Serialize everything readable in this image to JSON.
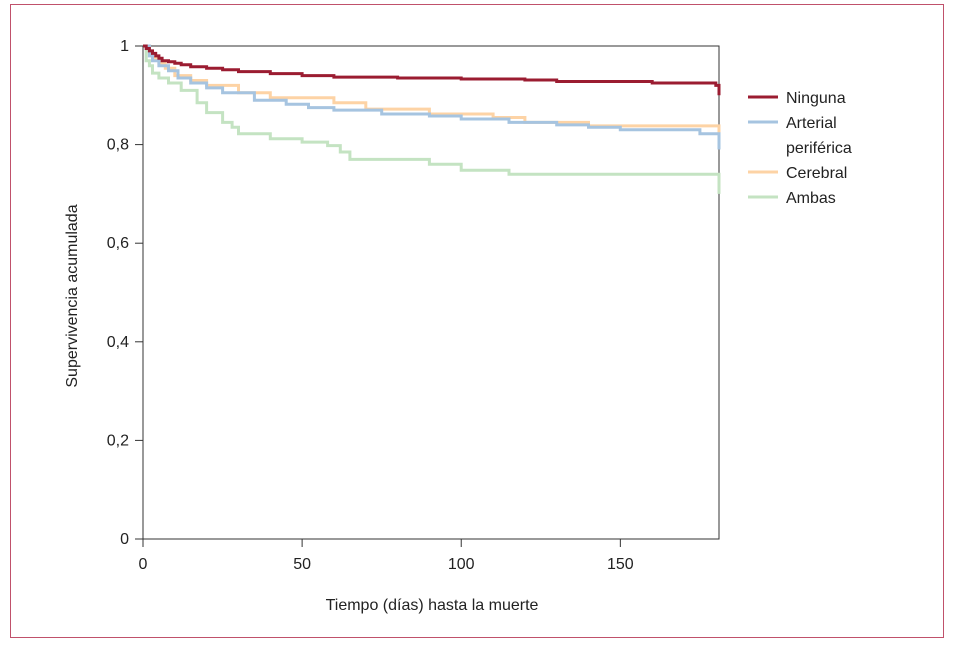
{
  "chart_data": {
    "type": "line",
    "title": "",
    "xlabel": "Tiempo (días) hasta la muerte",
    "ylabel": "Supervivencia acumulada",
    "xlim": [
      0,
      181
    ],
    "ylim": [
      0,
      1
    ],
    "x_ticks": [
      0,
      50,
      100,
      150
    ],
    "x_tick_labels": [
      "0",
      "50",
      "100",
      "150"
    ],
    "y_ticks": [
      0,
      0.2,
      0.4,
      0.6,
      0.8,
      1
    ],
    "y_tick_labels": [
      "0",
      "0,2",
      "0,4",
      "0,6",
      "0,8",
      "1"
    ],
    "grid": false,
    "legend_position": "right",
    "step": true,
    "series": [
      {
        "name": "Ninguna",
        "color": "#9b1c31",
        "x": [
          0,
          1,
          2,
          3,
          4,
          5,
          6,
          8,
          10,
          12,
          15,
          20,
          25,
          30,
          40,
          50,
          60,
          80,
          100,
          120,
          130,
          160,
          180,
          181
        ],
        "y": [
          1,
          0.995,
          0.99,
          0.985,
          0.98,
          0.975,
          0.97,
          0.968,
          0.965,
          0.962,
          0.958,
          0.955,
          0.952,
          0.948,
          0.944,
          0.94,
          0.937,
          0.935,
          0.933,
          0.931,
          0.928,
          0.925,
          0.92,
          0.9
        ]
      },
      {
        "name": "Arterial periférica",
        "color": "#a6c4e0",
        "x": [
          0,
          2,
          3,
          5,
          8,
          11,
          15,
          20,
          25,
          35,
          45,
          52,
          60,
          75,
          90,
          100,
          115,
          130,
          140,
          150,
          175,
          181
        ],
        "y": [
          1,
          0.98,
          0.97,
          0.96,
          0.95,
          0.935,
          0.925,
          0.915,
          0.905,
          0.89,
          0.882,
          0.875,
          0.87,
          0.862,
          0.858,
          0.852,
          0.845,
          0.84,
          0.835,
          0.83,
          0.822,
          0.79
        ]
      },
      {
        "name": "Cerebral",
        "color": "#fdd3a5",
        "x": [
          0,
          2,
          3,
          5,
          7,
          10,
          15,
          20,
          30,
          40,
          60,
          70,
          90,
          110,
          120,
          140,
          181
        ],
        "y": [
          1,
          0.985,
          0.975,
          0.965,
          0.955,
          0.94,
          0.93,
          0.92,
          0.905,
          0.895,
          0.885,
          0.872,
          0.862,
          0.855,
          0.845,
          0.838,
          0.82
        ]
      },
      {
        "name": "Ambas",
        "color": "#c4e3c2",
        "x": [
          0,
          1,
          2,
          3,
          5,
          8,
          12,
          17,
          20,
          25,
          28,
          30,
          40,
          50,
          58,
          62,
          65,
          90,
          100,
          115,
          181
        ],
        "y": [
          1,
          0.97,
          0.96,
          0.945,
          0.935,
          0.925,
          0.91,
          0.885,
          0.865,
          0.845,
          0.835,
          0.822,
          0.812,
          0.805,
          0.798,
          0.785,
          0.77,
          0.76,
          0.748,
          0.74,
          0.7
        ]
      }
    ]
  }
}
